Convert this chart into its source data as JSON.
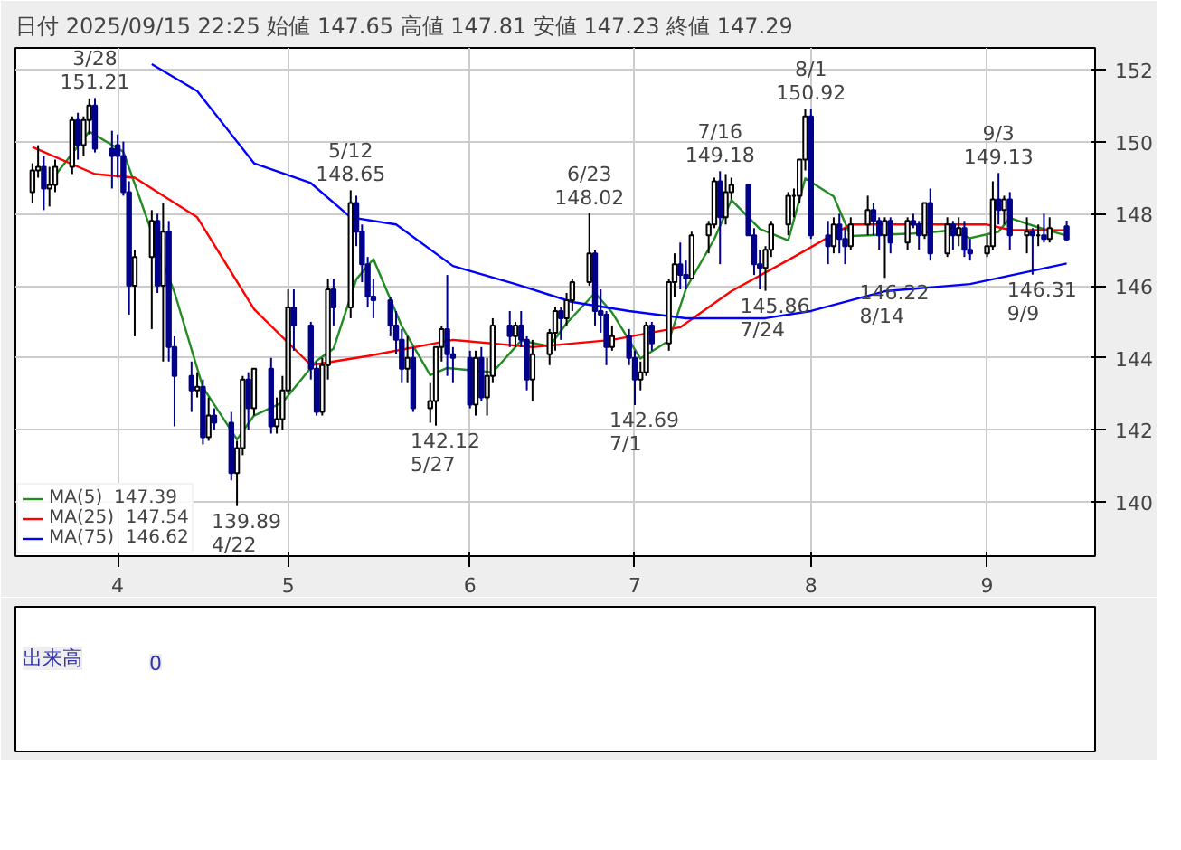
{
  "chart_data": [
    {
      "type": "candlestick",
      "title": "日付 2025/09/15 22:25 始値 147.65 高値 147.81 安値 147.23 終値 147.29",
      "x": [
        "2025-03-17",
        "2025-03-18",
        "2025-03-19",
        "2025-03-20",
        "2025-03-21",
        "2025-03-24",
        "2025-03-25",
        "2025-03-26",
        "2025-03-27",
        "2025-03-28",
        "2025-03-31",
        "2025-04-01",
        "2025-04-02",
        "2025-04-03",
        "2025-04-04",
        "2025-04-07",
        "2025-04-08",
        "2025-04-09",
        "2025-04-10",
        "2025-04-11",
        "2025-04-14",
        "2025-04-15",
        "2025-04-16",
        "2025-04-17",
        "2025-04-18",
        "2025-04-21",
        "2025-04-22",
        "2025-04-23",
        "2025-04-24",
        "2025-04-25",
        "2025-04-28",
        "2025-04-29",
        "2025-04-30",
        "2025-05-01",
        "2025-05-02",
        "2025-05-05",
        "2025-05-06",
        "2025-05-07",
        "2025-05-08",
        "2025-05-09",
        "2025-05-12",
        "2025-05-13",
        "2025-05-14",
        "2025-05-15",
        "2025-05-16",
        "2025-05-19",
        "2025-05-20",
        "2025-05-21",
        "2025-05-22",
        "2025-05-23",
        "2025-05-26",
        "2025-05-27",
        "2025-05-28",
        "2025-05-29",
        "2025-05-30",
        "2025-06-02",
        "2025-06-03",
        "2025-06-04",
        "2025-06-05",
        "2025-06-06",
        "2025-06-09",
        "2025-06-10",
        "2025-06-11",
        "2025-06-12",
        "2025-06-13",
        "2025-06-16",
        "2025-06-17",
        "2025-06-18",
        "2025-06-19",
        "2025-06-20",
        "2025-06-23",
        "2025-06-24",
        "2025-06-25",
        "2025-06-26",
        "2025-06-27",
        "2025-06-30",
        "2025-07-01",
        "2025-07-02",
        "2025-07-03",
        "2025-07-04",
        "2025-07-07",
        "2025-07-08",
        "2025-07-09",
        "2025-07-10",
        "2025-07-11",
        "2025-07-14",
        "2025-07-15",
        "2025-07-16",
        "2025-07-17",
        "2025-07-18",
        "2025-07-21",
        "2025-07-22",
        "2025-07-23",
        "2025-07-24",
        "2025-07-25",
        "2025-07-28",
        "2025-07-29",
        "2025-07-30",
        "2025-07-31",
        "2025-08-01",
        "2025-08-04",
        "2025-08-05",
        "2025-08-06",
        "2025-08-07",
        "2025-08-08",
        "2025-08-11",
        "2025-08-12",
        "2025-08-13",
        "2025-08-14",
        "2025-08-15",
        "2025-08-18",
        "2025-08-19",
        "2025-08-20",
        "2025-08-21",
        "2025-08-22",
        "2025-08-25",
        "2025-08-26",
        "2025-08-27",
        "2025-08-28",
        "2025-08-29",
        "2025-09-01",
        "2025-09-02",
        "2025-09-03",
        "2025-09-04",
        "2025-09-05",
        "2025-09-08",
        "2025-09-09",
        "2025-09-10",
        "2025-09-11",
        "2025-09-12",
        "2025-09-15"
      ],
      "ohlc": [
        [
          148.6,
          149.4,
          148.3,
          149.2
        ],
        [
          149.2,
          149.9,
          149.0,
          149.3
        ],
        [
          149.3,
          149.6,
          148.1,
          148.7
        ],
        [
          148.7,
          149.3,
          148.2,
          148.8
        ],
        [
          148.8,
          149.5,
          148.6,
          149.3
        ],
        [
          149.3,
          150.7,
          149.1,
          150.6
        ],
        [
          150.6,
          150.8,
          149.5,
          149.9
        ],
        [
          149.9,
          150.7,
          149.6,
          150.6
        ],
        [
          150.6,
          151.2,
          150.2,
          151.0
        ],
        [
          151.0,
          151.21,
          149.7,
          149.8
        ],
        [
          149.8,
          150.3,
          148.7,
          149.6
        ],
        [
          149.9,
          150.2,
          149.0,
          149.6
        ],
        [
          149.6,
          150.0,
          148.5,
          148.6
        ],
        [
          148.6,
          148.9,
          145.2,
          146.0
        ],
        [
          146.0,
          147.0,
          144.6,
          146.8
        ],
        [
          146.8,
          148.1,
          144.8,
          147.8
        ],
        [
          147.8,
          148.0,
          145.8,
          146.0
        ],
        [
          146.0,
          148.3,
          143.9,
          147.5
        ],
        [
          147.5,
          147.8,
          143.9,
          144.3
        ],
        [
          144.3,
          144.6,
          142.1,
          143.5
        ],
        [
          143.5,
          143.9,
          142.5,
          143.1
        ],
        [
          143.1,
          143.6,
          142.9,
          143.2
        ],
        [
          143.2,
          143.4,
          141.6,
          141.8
        ],
        [
          141.8,
          142.9,
          141.7,
          142.4
        ],
        [
          142.4,
          142.6,
          142.0,
          142.2
        ],
        [
          142.2,
          142.5,
          140.6,
          140.8
        ],
        [
          140.8,
          141.7,
          139.89,
          141.5
        ],
        [
          141.5,
          143.5,
          141.3,
          143.4
        ],
        [
          143.4,
          143.6,
          142.0,
          142.6
        ],
        [
          142.6,
          143.7,
          142.4,
          143.7
        ],
        [
          143.7,
          144.0,
          141.9,
          142.1
        ],
        [
          142.1,
          142.9,
          141.9,
          142.3
        ],
        [
          142.3,
          143.5,
          142.0,
          143.1
        ],
        [
          143.1,
          145.9,
          143.0,
          145.4
        ],
        [
          145.4,
          145.9,
          144.2,
          144.9
        ],
        [
          144.9,
          145.0,
          143.4,
          143.7
        ],
        [
          143.7,
          143.9,
          142.4,
          142.5
        ],
        [
          142.5,
          144.0,
          142.4,
          143.8
        ],
        [
          143.8,
          146.2,
          143.4,
          145.9
        ],
        [
          145.9,
          146.2,
          144.9,
          145.4
        ],
        [
          145.4,
          148.65,
          145.1,
          148.3
        ],
        [
          148.3,
          148.5,
          147.1,
          147.5
        ],
        [
          147.5,
          147.7,
          146.1,
          146.6
        ],
        [
          146.6,
          146.8,
          145.4,
          145.7
        ],
        [
          145.7,
          146.2,
          145.1,
          145.6
        ],
        [
          145.6,
          145.7,
          144.6,
          144.9
        ],
        [
          144.9,
          145.3,
          144.1,
          144.5
        ],
        [
          144.5,
          144.8,
          143.3,
          143.7
        ],
        [
          143.7,
          144.6,
          143.3,
          144.0
        ],
        [
          144.0,
          144.3,
          142.5,
          142.6
        ],
        [
          142.6,
          143.3,
          142.2,
          142.8
        ],
        [
          142.8,
          144.3,
          142.12,
          144.3
        ],
        [
          144.3,
          144.9,
          143.9,
          144.8
        ],
        [
          144.8,
          146.3,
          143.5,
          144.1
        ],
        [
          144.1,
          144.3,
          143.3,
          144.0
        ],
        [
          144.0,
          144.2,
          142.6,
          142.7
        ],
        [
          142.7,
          144.2,
          142.4,
          144.0
        ],
        [
          144.0,
          144.3,
          142.8,
          142.9
        ],
        [
          142.9,
          144.0,
          142.4,
          143.5
        ],
        [
          143.5,
          145.1,
          143.3,
          144.9
        ],
        [
          144.9,
          145.3,
          144.3,
          144.6
        ],
        [
          144.6,
          145.0,
          144.3,
          144.9
        ],
        [
          144.9,
          145.3,
          144.3,
          144.5
        ],
        [
          144.5,
          144.6,
          143.1,
          143.4
        ],
        [
          143.4,
          144.5,
          142.8,
          144.1
        ],
        [
          144.1,
          144.8,
          143.8,
          144.7
        ],
        [
          144.7,
          145.4,
          144.2,
          145.3
        ],
        [
          145.3,
          145.4,
          144.5,
          145.1
        ],
        [
          145.1,
          145.8,
          144.9,
          145.6
        ],
        [
          145.6,
          146.2,
          145.3,
          146.1
        ],
        [
          146.1,
          148.02,
          146.0,
          146.9
        ],
        [
          146.9,
          147.0,
          144.9,
          145.3
        ],
        [
          145.3,
          145.9,
          144.7,
          145.2
        ],
        [
          145.2,
          145.3,
          143.8,
          144.3
        ],
        [
          144.3,
          144.9,
          144.2,
          144.6
        ],
        [
          144.6,
          144.8,
          143.8,
          144.0
        ],
        [
          144.0,
          144.2,
          142.69,
          143.4
        ],
        [
          143.4,
          143.9,
          143.1,
          143.6
        ],
        [
          143.6,
          145.0,
          143.5,
          144.9
        ],
        [
          144.9,
          145.0,
          144.2,
          144.4
        ],
        [
          144.4,
          146.2,
          144.2,
          146.1
        ],
        [
          146.1,
          146.9,
          145.7,
          146.6
        ],
        [
          146.6,
          147.2,
          145.9,
          146.3
        ],
        [
          146.3,
          146.7,
          145.9,
          146.2
        ],
        [
          146.2,
          147.5,
          146.2,
          147.4
        ],
        [
          147.4,
          147.8,
          146.9,
          147.7
        ],
        [
          147.7,
          149.0,
          147.6,
          148.9
        ],
        [
          148.9,
          149.18,
          146.6,
          147.9
        ],
        [
          147.9,
          149.1,
          147.7,
          148.6
        ],
        [
          148.6,
          149.0,
          148.4,
          148.8
        ],
        [
          148.8,
          148.8,
          147.4,
          147.4
        ],
        [
          147.4,
          147.6,
          146.3,
          146.6
        ],
        [
          146.6,
          147.0,
          145.9,
          146.5
        ],
        [
          146.5,
          147.1,
          145.86,
          147.0
        ],
        [
          147.0,
          147.8,
          146.8,
          147.7
        ],
        [
          147.7,
          148.6,
          147.4,
          148.5
        ],
        [
          148.5,
          148.7,
          147.9,
          148.5
        ],
        [
          148.5,
          149.5,
          148.3,
          149.5
        ],
        [
          149.5,
          150.9,
          149.2,
          150.7
        ],
        [
          150.7,
          150.92,
          147.3,
          147.4
        ],
        [
          147.4,
          147.8,
          146.6,
          147.1
        ],
        [
          147.1,
          147.9,
          146.9,
          147.7
        ],
        [
          147.7,
          148.0,
          146.9,
          147.3
        ],
        [
          147.3,
          147.6,
          146.6,
          147.1
        ],
        [
          147.1,
          147.9,
          147.0,
          147.7
        ],
        [
          147.7,
          148.5,
          147.4,
          148.1
        ],
        [
          148.1,
          148.3,
          147.4,
          147.8
        ],
        [
          147.8,
          147.9,
          147.0,
          147.4
        ],
        [
          147.4,
          147.9,
          146.22,
          147.8
        ],
        [
          147.8,
          147.9,
          146.9,
          147.2
        ],
        [
          147.2,
          147.9,
          147.0,
          147.8
        ],
        [
          147.8,
          148.0,
          147.6,
          147.7
        ],
        [
          147.7,
          147.8,
          147.0,
          147.4
        ],
        [
          147.4,
          148.3,
          147.3,
          148.3
        ],
        [
          148.3,
          148.7,
          146.7,
          146.9
        ],
        [
          146.9,
          147.9,
          146.8,
          147.7
        ],
        [
          147.7,
          147.8,
          147.0,
          147.4
        ],
        [
          147.4,
          147.9,
          147.1,
          147.6
        ],
        [
          147.6,
          147.8,
          146.8,
          147.0
        ],
        [
          147.0,
          147.3,
          146.7,
          146.9
        ],
        [
          146.9,
          147.4,
          146.8,
          147.1
        ],
        [
          147.1,
          148.9,
          147.0,
          148.4
        ],
        [
          148.4,
          149.13,
          147.7,
          148.1
        ],
        [
          148.1,
          148.5,
          147.7,
          148.4
        ],
        [
          148.4,
          148.6,
          147.0,
          147.4
        ],
        [
          147.4,
          147.9,
          146.9,
          147.5
        ],
        [
          147.5,
          147.6,
          146.31,
          147.4
        ],
        [
          147.4,
          147.7,
          147.1,
          147.4
        ],
        [
          147.4,
          148.0,
          147.2,
          147.3
        ],
        [
          147.3,
          147.9,
          147.2,
          147.6
        ],
        [
          147.65,
          147.81,
          147.23,
          147.29
        ]
      ],
      "series": [
        {
          "name": "MA(5)  147.39",
          "type": "line",
          "color": "#228b22",
          "x": [
            "2025-03-21",
            "2025-03-27",
            "2025-04-02",
            "2025-04-08",
            "2025-04-11",
            "2025-04-16",
            "2025-04-22",
            "2025-04-25",
            "2025-04-30",
            "2025-05-06",
            "2025-05-09",
            "2025-05-13",
            "2025-05-16",
            "2025-05-21",
            "2025-05-26",
            "2025-05-29",
            "2025-06-06",
            "2025-06-11",
            "2025-06-16",
            "2025-06-19",
            "2025-06-24",
            "2025-06-27",
            "2025-07-02",
            "2025-07-07",
            "2025-07-10",
            "2025-07-15",
            "2025-07-18",
            "2025-07-23",
            "2025-07-28",
            "2025-07-31",
            "2025-08-05",
            "2025-08-08",
            "2025-08-19",
            "2025-08-26",
            "2025-08-29",
            "2025-09-03",
            "2025-09-05",
            "2025-09-10",
            "2025-09-15"
          ],
          "values": [
            149.06,
            150.28,
            149.72,
            147.04,
            145.82,
            143.18,
            141.74,
            142.4,
            142.76,
            143.92,
            144.26,
            146.18,
            146.74,
            144.88,
            143.52,
            143.72,
            143.6,
            144.48,
            144.32,
            144.96,
            145.8,
            145.26,
            143.98,
            144.48,
            145.92,
            147.3,
            148.38,
            147.58,
            147.26,
            148.98,
            148.48,
            147.38,
            147.45,
            147.54,
            147.32,
            147.5,
            147.88,
            147.62,
            147.39
          ]
        },
        {
          "name": "MA(25)  147.54",
          "type": "line",
          "color": "#ff0000",
          "x": [
            "2025-03-17",
            "2025-03-28",
            "2025-04-04",
            "2025-04-15",
            "2025-04-25",
            "2025-05-05",
            "2025-05-15",
            "2025-05-30",
            "2025-06-13",
            "2025-06-27",
            "2025-07-09",
            "2025-07-18",
            "2025-07-29",
            "2025-08-08",
            "2025-08-22",
            "2025-09-01",
            "2025-09-05",
            "2025-09-15"
          ],
          "values": [
            149.85,
            149.1,
            149.0,
            147.9,
            145.35,
            143.8,
            144.05,
            144.5,
            144.3,
            144.5,
            144.85,
            145.85,
            146.8,
            147.7,
            147.7,
            147.7,
            147.55,
            147.54
          ]
        },
        {
          "name": "MA(75)  146.62",
          "type": "line",
          "color": "#0000ff",
          "x": [
            "2025-04-07",
            "2025-04-15",
            "2025-04-25",
            "2025-05-05",
            "2025-05-12",
            "2025-05-20",
            "2025-05-30",
            "2025-06-10",
            "2025-06-20",
            "2025-06-30",
            "2025-07-10",
            "2025-07-24",
            "2025-08-01",
            "2025-08-14",
            "2025-08-29",
            "2025-09-15"
          ],
          "values": [
            152.15,
            151.4,
            149.4,
            148.85,
            147.9,
            147.7,
            146.55,
            146.05,
            145.55,
            145.3,
            145.1,
            145.1,
            145.3,
            145.85,
            146.05,
            146.62
          ]
        }
      ],
      "xlim": [
        "2025-03-14",
        "2025-09-20"
      ],
      "ylim": [
        138.5,
        152.6
      ],
      "yticks": [
        140,
        142,
        144,
        146,
        148,
        150,
        152
      ],
      "xticks": [
        {
          "value": "2025-04-01",
          "label": "4"
        },
        {
          "value": "2025-05-01",
          "label": "5"
        },
        {
          "value": "2025-06-02",
          "label": "6"
        },
        {
          "value": "2025-07-01",
          "label": "7"
        },
        {
          "value": "2025-08-01",
          "label": "8"
        },
        {
          "value": "2025-09-01",
          "label": "9"
        }
      ],
      "grid": true,
      "legend": "bottom left",
      "annotations": [
        {
          "text": "3/28\n151.21",
          "x": "2025-03-28",
          "y": 151.21
        },
        {
          "text": "139.89\n4/22",
          "x": "2025-04-22",
          "y": 139.89
        },
        {
          "text": "5/12\n148.65",
          "x": "2025-05-12",
          "y": 148.65
        },
        {
          "text": "142.12\n5/27",
          "x": "2025-05-27",
          "y": 142.12
        },
        {
          "text": "6/23\n148.02",
          "x": "2025-06-23",
          "y": 148.02
        },
        {
          "text": "142.69\n7/1",
          "x": "2025-07-01",
          "y": 142.69
        },
        {
          "text": "7/16\n149.18",
          "x": "2025-07-16",
          "y": 149.18
        },
        {
          "text": "145.86\n7/24",
          "x": "2025-07-24",
          "y": 145.86
        },
        {
          "text": "8/1\n150.92",
          "x": "2025-08-01",
          "y": 150.92
        },
        {
          "text": "146.22\n8/14",
          "x": "2025-08-14",
          "y": 146.22
        },
        {
          "text": "9/3\n149.13",
          "x": "2025-09-03",
          "y": 149.13
        },
        {
          "text": "146.31\n9/9",
          "x": "2025-09-09",
          "y": 146.31
        }
      ]
    },
    {
      "type": "other",
      "annotations": [
        "出来高",
        "0"
      ]
    }
  ]
}
